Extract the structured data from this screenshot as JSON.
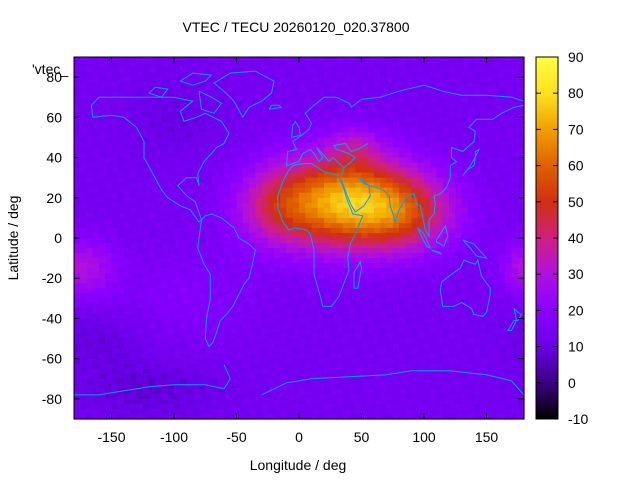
{
  "chart_data": {
    "type": "heatmap",
    "title": "VTEC / TECU 20260120_020.37800",
    "xlabel": "Longitude / deg",
    "ylabel": "Latitude / deg",
    "legend_key": "'vtec_",
    "xlim": [
      -180,
      180
    ],
    "ylim": [
      -90,
      90
    ],
    "x_ticks": [
      -150,
      -100,
      -50,
      0,
      50,
      100,
      150
    ],
    "y_ticks": [
      -80,
      -60,
      -40,
      -20,
      0,
      20,
      40,
      60,
      80
    ],
    "colorbar": {
      "min": -10,
      "max": 90,
      "ticks": [
        -10,
        0,
        10,
        20,
        30,
        40,
        50,
        60,
        70,
        80,
        90
      ]
    },
    "colormap": [
      "#000000",
      "#3a0080",
      "#6a00e8",
      "#8a00ff",
      "#b010e0",
      "#d02080",
      "#d03010",
      "#e06000",
      "#f0a000",
      "#ffe020",
      "#ffff40"
    ],
    "coastline_color": "#00a0ff",
    "field": {
      "background_tecu": 14,
      "enhancements": [
        {
          "lon": 35,
          "lat": 18,
          "dlon": 55,
          "dlat": 22,
          "tecu": 58
        },
        {
          "lon": 85,
          "lat": 12,
          "dlon": 40,
          "dlat": 18,
          "tecu": 25
        },
        {
          "lon": -20,
          "lat": 15,
          "dlon": 30,
          "dlat": 18,
          "tecu": 15
        },
        {
          "lon": 45,
          "lat": 45,
          "dlon": 20,
          "dlat": 10,
          "tecu": 12
        },
        {
          "lon": -165,
          "lat": -15,
          "dlon": 20,
          "dlat": 15,
          "tecu": 12
        },
        {
          "lon": 175,
          "lat": -15,
          "dlon": 15,
          "dlat": 12,
          "tecu": 10
        },
        {
          "lon": -90,
          "lat": -30,
          "dlon": 60,
          "dlat": 25,
          "tecu": 4
        }
      ],
      "depletions": [
        {
          "lon": -120,
          "lat": -75,
          "dlon": 60,
          "dlat": 15,
          "tecu": -6
        },
        {
          "lon": -160,
          "lat": -50,
          "dlon": 40,
          "dlat": 15,
          "tecu": -5
        },
        {
          "lon": -100,
          "lat": 60,
          "dlon": 40,
          "dlat": 20,
          "tecu": -4
        }
      ]
    }
  }
}
